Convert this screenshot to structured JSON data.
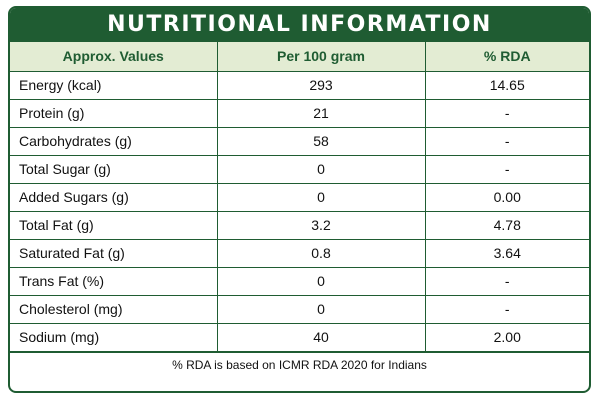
{
  "title": "NUTRITIONAL INFORMATION",
  "headers": [
    "Approx. Values",
    "Per 100 gram",
    "% RDA"
  ],
  "rows": [
    {
      "label": "Energy (kcal)",
      "per100": "293",
      "rda": "14.65"
    },
    {
      "label": "Protein (g)",
      "per100": "21",
      "rda": "-"
    },
    {
      "label": "Carbohydrates (g)",
      "per100": "58",
      "rda": "-"
    },
    {
      "label": "Total Sugar (g)",
      "per100": "0",
      "rda": "-"
    },
    {
      "label": "Added Sugars (g)",
      "per100": "0",
      "rda": "0.00"
    },
    {
      "label": "Total Fat (g)",
      "per100": "3.2",
      "rda": "4.78"
    },
    {
      "label": "Saturated Fat (g)",
      "per100": "0.8",
      "rda": "3.64"
    },
    {
      "label": "Trans Fat (%)",
      "per100": "0",
      "rda": "-"
    },
    {
      "label": "Cholesterol (mg)",
      "per100": "0",
      "rda": "-"
    },
    {
      "label": "Sodium (mg)",
      "per100": "40",
      "rda": "2.00"
    }
  ],
  "footnote": "% RDA is based on ICMR RDA 2020 for Indians",
  "colors": {
    "primary": "#1f5c32",
    "header_bg": "#e3ecd3"
  }
}
